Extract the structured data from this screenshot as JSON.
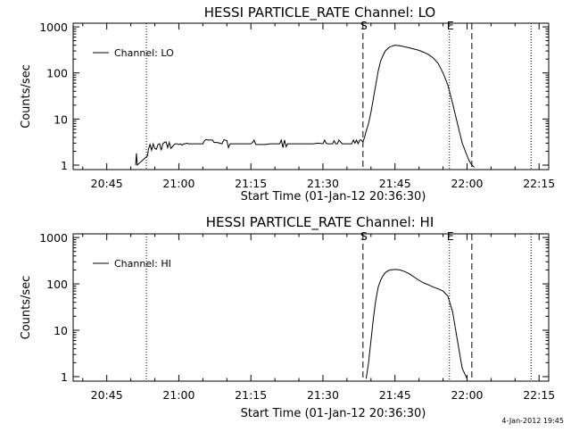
{
  "footer_timestamp": "4-Jan-2012 19:45",
  "chart_data": [
    {
      "type": "line",
      "title": "HESSI PARTICLE_RATE Channel: LO",
      "xlabel": "Start Time (01-Jan-12 20:36:30)",
      "ylabel": "Counts/sec",
      "yscale": "log",
      "xlim": [
        "20:38:00",
        "22:17:00"
      ],
      "ylim": [
        0.8,
        1200
      ],
      "x_tick_labels": [
        "20:45",
        "21:00",
        "21:15",
        "21:30",
        "21:45",
        "22:00",
        "22:15"
      ],
      "y_tick_labels": [
        "1",
        "10",
        "100",
        "1000"
      ],
      "y_tick_values": [
        1,
        10,
        100,
        1000
      ],
      "legend": {
        "label": "Channel: LO",
        "position": "top-left"
      },
      "vertical_markers": [
        {
          "x": "20:53:15",
          "style": "dotted",
          "label": ""
        },
        {
          "x": "21:38:20",
          "style": "dashed",
          "label": "S"
        },
        {
          "x": "21:56:20",
          "style": "dotted",
          "label": "E"
        },
        {
          "x": "22:01:00",
          "style": "dashed",
          "label": ""
        },
        {
          "x": "22:13:20",
          "style": "dotted",
          "label": ""
        }
      ],
      "series": [
        {
          "name": "Channel: LO",
          "x": [
            "20:51:00",
            "20:51:10",
            "20:51:20",
            "20:53:30",
            "20:53:40",
            "20:54:00",
            "20:54:20",
            "20:54:40",
            "20:55:00",
            "20:55:20",
            "20:55:40",
            "20:56:00",
            "20:56:20",
            "20:56:40",
            "20:57:00",
            "20:57:20",
            "20:57:40",
            "20:58:00",
            "20:58:20",
            "20:58:40",
            "20:59:00",
            "20:59:20",
            "20:59:40",
            "21:00:00",
            "21:00:20",
            "21:00:40",
            "21:01:00",
            "21:01:20",
            "21:01:40",
            "21:02:00",
            "21:03:00",
            "21:04:00",
            "21:05:00",
            "21:05:20",
            "21:05:40",
            "21:06:00",
            "21:06:40",
            "21:07:00",
            "21:07:20",
            "21:08:00",
            "21:09:00",
            "21:09:20",
            "21:09:40",
            "21:10:00",
            "21:10:20",
            "21:10:40",
            "21:11:00",
            "21:12:00",
            "21:13:00",
            "21:14:00",
            "21:15:00",
            "21:15:20",
            "21:15:40",
            "21:16:00",
            "21:17:00",
            "21:18:00",
            "21:19:00",
            "21:20:00",
            "21:21:00",
            "21:21:20",
            "21:21:40",
            "21:22:00",
            "21:22:20",
            "21:22:40",
            "21:23:00",
            "21:24:00",
            "21:25:00",
            "21:26:00",
            "21:27:00",
            "21:28:00",
            "21:29:00",
            "21:30:00",
            "21:30:20",
            "21:30:40",
            "21:31:00",
            "21:32:00",
            "21:32:20",
            "21:32:40",
            "21:33:00",
            "21:33:20",
            "21:34:00",
            "21:35:00",
            "21:36:00",
            "21:36:20",
            "21:36:40",
            "21:37:00",
            "21:37:20",
            "21:37:40",
            "21:38:00",
            "21:38:20",
            "21:38:40",
            "21:39:00",
            "21:39:30",
            "21:40:00",
            "21:40:30",
            "21:41:00",
            "21:41:30",
            "21:42:00",
            "21:42:30",
            "21:43:00",
            "21:43:30",
            "21:44:00",
            "21:45:00",
            "21:46:00",
            "21:47:00",
            "21:48:00",
            "21:49:00",
            "21:50:00",
            "21:51:00",
            "21:52:00",
            "21:53:00",
            "21:54:00",
            "21:55:00",
            "21:56:00",
            "21:57:00",
            "21:58:00",
            "21:59:00",
            "22:00:00",
            "22:00:30",
            "22:01:00",
            "22:01:30"
          ],
          "y": [
            1.0,
            1.8,
            1.0,
            1.6,
            2.2,
            2.8,
            2.1,
            2.9,
            2.3,
            2.2,
            2.8,
            2.9,
            2.1,
            2.9,
            3.1,
            3.2,
            2.4,
            3.1,
            2.3,
            2.5,
            2.8,
            2.9,
            2.9,
            2.8,
            2.9,
            2.7,
            2.9,
            2.9,
            3.0,
            2.9,
            2.9,
            2.9,
            2.9,
            3.4,
            3.6,
            3.5,
            3.5,
            3.5,
            3.1,
            3.1,
            2.9,
            3.5,
            3.5,
            3.4,
            2.4,
            2.9,
            2.9,
            2.9,
            2.9,
            2.9,
            2.9,
            3.1,
            3.5,
            2.8,
            2.8,
            2.8,
            2.9,
            2.9,
            2.9,
            3.5,
            2.4,
            3.5,
            2.5,
            2.9,
            2.9,
            2.9,
            2.9,
            2.9,
            2.9,
            2.9,
            3.0,
            2.9,
            3.5,
            3.0,
            2.9,
            2.9,
            3.4,
            2.9,
            2.9,
            3.5,
            2.9,
            2.9,
            2.9,
            3.5,
            3.0,
            3.5,
            2.9,
            3.5,
            3.5,
            3.2,
            4.0,
            5.5,
            8.0,
            14,
            28,
            55,
            110,
            180,
            240,
            300,
            340,
            370,
            400,
            390,
            370,
            350,
            330,
            310,
            280,
            250,
            210,
            160,
            100,
            55,
            22,
            8,
            3,
            1.6,
            1.2,
            1.0,
            0.9
          ]
        }
      ]
    },
    {
      "type": "line",
      "title": "HESSI PARTICLE_RATE Channel: HI",
      "xlabel": "Start Time (01-Jan-12 20:36:30)",
      "ylabel": "Counts/sec",
      "yscale": "log",
      "xlim": [
        "20:38:00",
        "22:17:00"
      ],
      "ylim": [
        0.8,
        1200
      ],
      "x_tick_labels": [
        "20:45",
        "21:00",
        "21:15",
        "21:30",
        "21:45",
        "22:00",
        "22:15"
      ],
      "y_tick_labels": [
        "1",
        "10",
        "100",
        "1000"
      ],
      "y_tick_values": [
        1,
        10,
        100,
        1000
      ],
      "legend": {
        "label": "Channel: HI",
        "position": "top-left"
      },
      "vertical_markers": [
        {
          "x": "20:53:15",
          "style": "dotted",
          "label": ""
        },
        {
          "x": "21:38:20",
          "style": "dashed",
          "label": "S"
        },
        {
          "x": "21:56:20",
          "style": "dotted",
          "label": "E"
        },
        {
          "x": "22:01:00",
          "style": "dashed",
          "label": ""
        },
        {
          "x": "22:13:20",
          "style": "dotted",
          "label": ""
        }
      ],
      "series": [
        {
          "name": "Channel: HI",
          "x": [
            "21:39:00",
            "21:39:30",
            "21:40:00",
            "21:40:30",
            "21:41:00",
            "21:41:30",
            "21:42:00",
            "21:42:30",
            "21:43:00",
            "21:43:30",
            "21:44:00",
            "21:45:00",
            "21:46:00",
            "21:47:00",
            "21:48:00",
            "21:49:00",
            "21:50:00",
            "21:51:00",
            "21:52:00",
            "21:53:00",
            "21:54:00",
            "21:55:00",
            "21:56:00",
            "21:57:00",
            "21:58:00",
            "21:59:00",
            "22:00:00"
          ],
          "y": [
            0.9,
            2.0,
            6,
            18,
            45,
            85,
            120,
            150,
            175,
            190,
            200,
            205,
            200,
            185,
            165,
            140,
            120,
            105,
            95,
            85,
            78,
            70,
            55,
            25,
            6,
            1.5,
            0.9
          ]
        }
      ]
    }
  ]
}
